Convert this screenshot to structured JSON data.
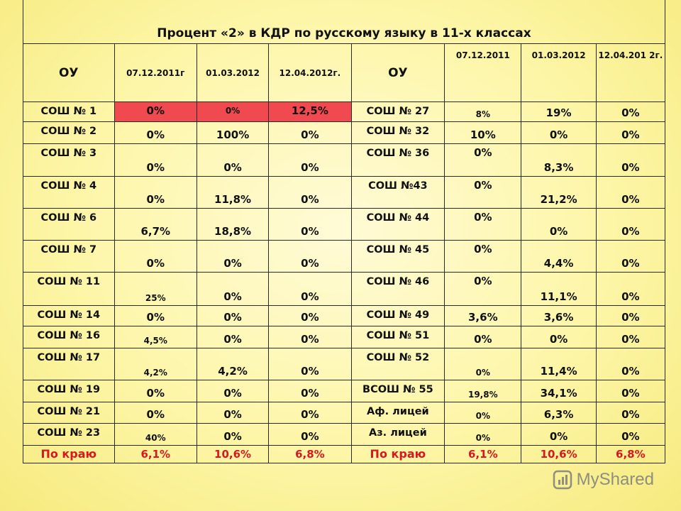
{
  "title": "Процент «2» в КДР по русскому языку в 11-х классах",
  "header": {
    "ou": "ОУ",
    "left_dates": [
      "07.12.2011г",
      "01.03.2012",
      "12.04.2012г."
    ],
    "right_dates": [
      "07.12.2011",
      "01.03.2012",
      "12.04.201 2г."
    ]
  },
  "rows": [
    {
      "l": "СОШ № 1",
      "lv": [
        "0%",
        "0%",
        "12,5%"
      ],
      "r": "СОШ № 27",
      "rv": [
        "8%",
        "19%",
        "0%"
      ]
    },
    {
      "l": "СОШ № 2",
      "lv": [
        "0%",
        "100%",
        "0%"
      ],
      "r": "СОШ № 32",
      "rv": [
        "10%",
        "0%",
        "0%"
      ]
    },
    {
      "l": "СОШ № 3",
      "lv": [
        "0%",
        "0%",
        "0%"
      ],
      "r": "СОШ № 36",
      "rv": [
        "0%",
        "8,3%",
        "0%"
      ]
    },
    {
      "l": "СОШ № 4",
      "lv": [
        "0%",
        "11,8%",
        "0%"
      ],
      "r": "СОШ №43",
      "rv": [
        "0%",
        "21,2%",
        "0%"
      ]
    },
    {
      "l": "СОШ № 6",
      "lv": [
        "6,7%",
        "18,8%",
        "0%"
      ],
      "r": "СОШ № 44",
      "rv": [
        "0%",
        "0%",
        "0%"
      ]
    },
    {
      "l": "СОШ № 7",
      "lv": [
        "0%",
        "0%",
        "0%"
      ],
      "r": "СОШ № 45",
      "rv": [
        "0%",
        "4,4%",
        "0%"
      ]
    },
    {
      "l": "СОШ № 11",
      "lv": [
        "25%",
        "0%",
        "0%"
      ],
      "r": "СОШ № 46",
      "rv": [
        "0%",
        "11,1%",
        "0%"
      ]
    },
    {
      "l": "СОШ № 14",
      "lv": [
        "0%",
        "0%",
        "0%"
      ],
      "r": "СОШ  № 49",
      "rv": [
        "3,6%",
        "3,6%",
        "0%"
      ]
    },
    {
      "l": "СОШ № 16",
      "lv": [
        "4,5%",
        "0%",
        "0%"
      ],
      "r": "СОШ № 51",
      "rv": [
        "0%",
        "0%",
        "0%"
      ]
    },
    {
      "l": "СОШ № 17",
      "lv": [
        "4,2%",
        "4,2%",
        "0%"
      ],
      "r": "СОШ № 52",
      "rv": [
        "0%",
        "11,4%",
        "0%"
      ]
    },
    {
      "l": "СОШ № 19",
      "lv": [
        "0%",
        "0%",
        "0%"
      ],
      "r": "ВСОШ № 55",
      "rv": [
        "19,8%",
        "34,1%",
        "0%"
      ]
    },
    {
      "l": "СОШ № 21",
      "lv": [
        "0%",
        "0%",
        "0%"
      ],
      "r": "Аф. лицей",
      "rv": [
        "0%",
        "6,3%",
        "0%"
      ]
    },
    {
      "l": "СОШ № 23",
      "lv": [
        "40%",
        "0%",
        "0%"
      ],
      "r": "Аз. лицей",
      "rv": [
        "0%",
        "0%",
        "0%"
      ]
    }
  ],
  "total": {
    "l": "По краю",
    "lv": [
      "6,1%",
      "10,6%",
      "6,8%"
    ],
    "r": "По краю",
    "rv": [
      "6,1%",
      "10,6%",
      "6,8%"
    ]
  },
  "watermark": "MyShared",
  "colors": {
    "background": "#fdf6a8",
    "highlight": "#f0494f",
    "total_text": "#d81820"
  }
}
